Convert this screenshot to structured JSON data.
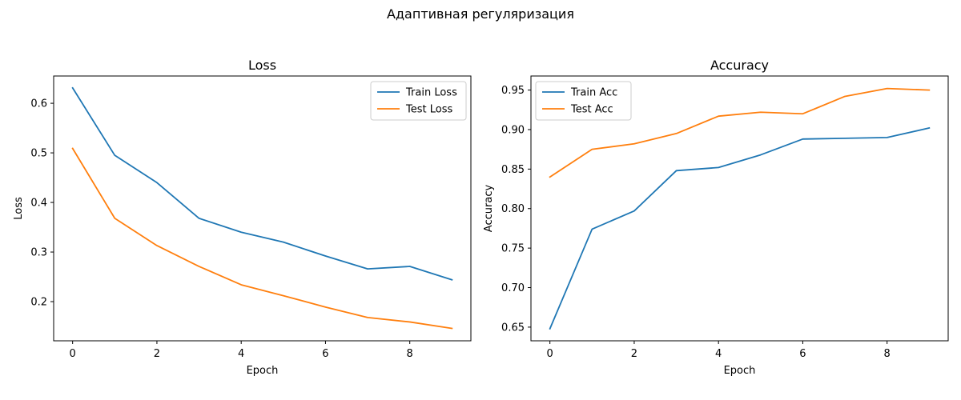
{
  "suptitle": "Адаптивная регуляризация",
  "colors": {
    "train": "#1f77b4",
    "test": "#ff7f0e"
  },
  "chart_data": [
    {
      "type": "line",
      "title": "Loss",
      "xlabel": "Epoch",
      "ylabel": "Loss",
      "x": [
        0,
        1,
        2,
        3,
        4,
        5,
        6,
        7,
        8,
        9
      ],
      "xlim": [
        -0.45,
        9.45
      ],
      "ylim": [
        0.121,
        0.655
      ],
      "xticks": [
        0,
        2,
        4,
        6,
        8
      ],
      "yticks": [
        0.2,
        0.3,
        0.4,
        0.5,
        0.6
      ],
      "ytick_decimals": 1,
      "legend_loc": "top-right",
      "series": [
        {
          "name": "Train Loss",
          "color": "#1f77b4",
          "values": [
            0.631,
            0.495,
            0.44,
            0.368,
            0.34,
            0.32,
            0.292,
            0.266,
            0.271,
            0.244
          ]
        },
        {
          "name": "Test Loss",
          "color": "#ff7f0e",
          "values": [
            0.509,
            0.368,
            0.313,
            0.271,
            0.234,
            0.212,
            0.189,
            0.168,
            0.159,
            0.146
          ]
        }
      ]
    },
    {
      "type": "line",
      "title": "Accuracy",
      "xlabel": "Epoch",
      "ylabel": "Accuracy",
      "x": [
        0,
        1,
        2,
        3,
        4,
        5,
        6,
        7,
        8,
        9
      ],
      "xlim": [
        -0.45,
        9.45
      ],
      "ylim": [
        0.6327,
        0.9678
      ],
      "xticks": [
        0,
        2,
        4,
        6,
        8
      ],
      "yticks": [
        0.65,
        0.7,
        0.75,
        0.8,
        0.85,
        0.9,
        0.95
      ],
      "ytick_decimals": 2,
      "legend_loc": "top-left",
      "series": [
        {
          "name": "Train Acc",
          "color": "#1f77b4",
          "values": [
            0.648,
            0.774,
            0.797,
            0.848,
            0.852,
            0.868,
            0.888,
            0.889,
            0.89,
            0.902
          ]
        },
        {
          "name": "Test Acc",
          "color": "#ff7f0e",
          "values": [
            0.84,
            0.875,
            0.882,
            0.895,
            0.917,
            0.922,
            0.92,
            0.942,
            0.952,
            0.95
          ]
        }
      ]
    }
  ]
}
